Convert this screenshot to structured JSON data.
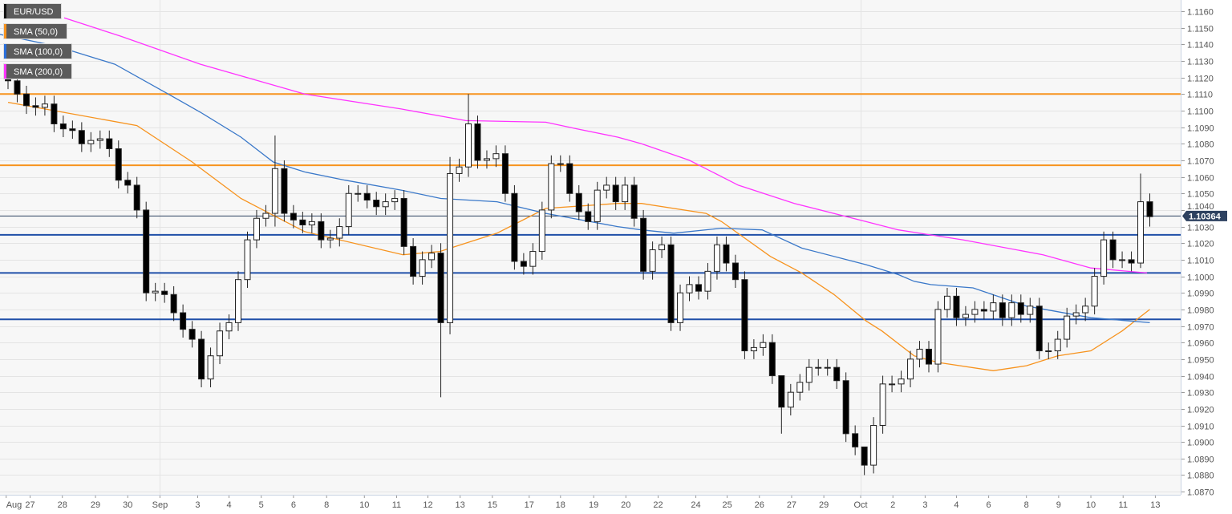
{
  "legend": [
    {
      "label": "EUR/USD",
      "color": "#111111"
    },
    {
      "label": "SMA (50,0)",
      "color": "#f7931e"
    },
    {
      "label": "SMA (100,0)",
      "color": "#2a6fdb"
    },
    {
      "label": "SMA (200,0)",
      "color": "#ff33ff"
    }
  ],
  "chart_data": {
    "type": "candlestick",
    "title": "EUR/USD",
    "ylim": [
      1.087,
      1.116
    ],
    "y_ticks": [
      "1.1160",
      "1.1150",
      "1.1140",
      "1.1130",
      "1.1120",
      "1.1110",
      "1.1100",
      "1.1090",
      "1.1080",
      "1.1070",
      "1.1060",
      "1.1050",
      "1.1040",
      "1.1030",
      "1.1020",
      "1.1010",
      "1.1000",
      "1.0990",
      "1.0980",
      "1.0970",
      "1.0960",
      "1.0950",
      "1.0940",
      "1.0930",
      "1.0920",
      "1.0910",
      "1.0900",
      "1.0890",
      "1.0880",
      "1.0870"
    ],
    "x_ticks": [
      {
        "label": "Aug",
        "i": -0.2
      },
      {
        "label": "27",
        "i": 2.4
      },
      {
        "label": "28",
        "i": 5.9
      },
      {
        "label": "29",
        "i": 9.5
      },
      {
        "label": "30",
        "i": 13
      },
      {
        "label": "Sep",
        "i": 16.5
      },
      {
        "label": "3",
        "i": 20.6
      },
      {
        "label": "4",
        "i": 24
      },
      {
        "label": "5",
        "i": 27.5
      },
      {
        "label": "6",
        "i": 31
      },
      {
        "label": "8",
        "i": 34.6
      },
      {
        "label": "10",
        "i": 38.7
      },
      {
        "label": "11",
        "i": 42.2
      },
      {
        "label": "12",
        "i": 45.6
      },
      {
        "label": "13",
        "i": 49.1
      },
      {
        "label": "15",
        "i": 52.6
      },
      {
        "label": "17",
        "i": 56.6
      },
      {
        "label": "18",
        "i": 60
      },
      {
        "label": "19",
        "i": 63.6
      },
      {
        "label": "20",
        "i": 67.1
      },
      {
        "label": "22",
        "i": 70.6
      },
      {
        "label": "24",
        "i": 74.7
      },
      {
        "label": "25",
        "i": 78.1
      },
      {
        "label": "26",
        "i": 81.6
      },
      {
        "label": "27",
        "i": 85.1
      },
      {
        "label": "29",
        "i": 88.6
      },
      {
        "label": "Oct",
        "i": 92.6
      },
      {
        "label": "2",
        "i": 96.1
      },
      {
        "label": "3",
        "i": 99.6
      },
      {
        "label": "4",
        "i": 103
      },
      {
        "label": "6",
        "i": 106.5
      },
      {
        "label": "8",
        "i": 110.6
      },
      {
        "label": "9",
        "i": 114.1
      },
      {
        "label": "10",
        "i": 117.6
      },
      {
        "label": "11",
        "i": 121.1
      },
      {
        "label": "13",
        "i": 124.6
      }
    ],
    "month_separators": [
      16.5,
      92.6
    ],
    "first_open": 1.1122,
    "closes": [
      1.1118,
      1.111,
      1.1103,
      1.1102,
      1.1104,
      1.1092,
      1.1089,
      1.1088,
      1.108,
      1.1082,
      1.1083,
      1.1077,
      1.1058,
      1.1055,
      1.104,
      1.099,
      1.0991,
      1.0989,
      1.0978,
      1.0968,
      1.0962,
      1.0938,
      1.0952,
      1.0967,
      1.0972,
      1.0998,
      1.1022,
      1.1035,
      1.1038,
      1.1065,
      1.1038,
      1.1034,
      1.1031,
      1.1033,
      1.1022,
      1.1023,
      1.103,
      1.105,
      1.105,
      1.1046,
      1.1042,
      1.1045,
      1.1047,
      1.1018,
      1.1,
      1.101,
      1.1014,
      1.0972,
      1.1062,
      1.1066,
      1.1092,
      1.107,
      1.1071,
      1.1074,
      1.105,
      1.1009,
      1.1006,
      1.1015,
      1.104,
      1.1068,
      1.1068,
      1.105,
      1.1039,
      1.1033,
      1.1052,
      1.1055,
      1.1045,
      1.1055,
      1.1035,
      1.1003,
      1.1016,
      1.1019,
      1.0972,
      1.099,
      1.0995,
      1.0991,
      1.1003,
      1.1019,
      1.1008,
      1.0998,
      1.0955,
      1.0957,
      1.096,
      1.094,
      1.0921,
      1.093,
      1.0936,
      1.0945,
      1.0945,
      1.0945,
      1.0937,
      1.0905,
      1.0897,
      1.0886,
      1.091,
      1.0935,
      1.0935,
      1.0938,
      1.095,
      1.0956,
      1.0947,
      1.098,
      1.0988,
      1.0975,
      1.0977,
      1.098,
      1.0979,
      1.0984,
      1.0975,
      1.0984,
      1.0977,
      1.0982,
      1.0955,
      1.0955,
      1.0962,
      1.0976,
      1.0978,
      1.0982,
      1.1,
      1.1022,
      1.101,
      1.101,
      1.1008,
      1.1045,
      1.1036
    ],
    "extremes": [
      [
        29,
        1.1085,
        1.103
      ],
      [
        47,
        1.102,
        1.0927
      ],
      [
        48,
        1.1072,
        1.0965
      ],
      [
        50,
        1.111,
        1.106
      ],
      [
        84,
        1.094,
        1.0905
      ],
      [
        93,
        1.0895,
        1.088
      ],
      [
        123,
        1.1062,
        1.1005
      ],
      [
        124,
        1.105,
        1.103
      ]
    ],
    "series": [
      {
        "name": "SMA (50,0)",
        "color": "#f7931e",
        "points": [
          [
            0,
            1.1105
          ],
          [
            14,
            1.1091
          ],
          [
            20,
            1.1069
          ],
          [
            25.3,
            1.1047
          ],
          [
            32.2,
            1.1027
          ],
          [
            42.9,
            1.1013
          ],
          [
            46.9,
            1.1015
          ],
          [
            53.1,
            1.1026
          ],
          [
            58.4,
            1.1041
          ],
          [
            66.2,
            1.1044
          ],
          [
            68.8,
            1.1044
          ],
          [
            75.8,
            1.1038
          ],
          [
            77.5,
            1.1033
          ],
          [
            82.8,
            1.1012
          ],
          [
            86.2,
            1.1002
          ],
          [
            89.7,
            1.0989
          ],
          [
            93.2,
            1.0973
          ],
          [
            94.9,
            1.0967
          ],
          [
            98.4,
            1.0952
          ],
          [
            101,
            1.0948
          ],
          [
            107,
            1.0943
          ],
          [
            110.6,
            1.0946
          ],
          [
            114,
            1.0952
          ],
          [
            117.6,
            1.0955
          ],
          [
            121,
            1.0967
          ],
          [
            124,
            1.098
          ]
        ]
      },
      {
        "name": "SMA (100,0)",
        "color": "#3a78c9",
        "points": [
          [
            -0.9,
            1.1146
          ],
          [
            5.2,
            1.1139
          ],
          [
            11.6,
            1.1128
          ],
          [
            17.4,
            1.111
          ],
          [
            20.9,
            1.1099
          ],
          [
            25.3,
            1.1084
          ],
          [
            28.8,
            1.1069
          ],
          [
            32.2,
            1.1063
          ],
          [
            36.6,
            1.1058
          ],
          [
            42.7,
            1.1052
          ],
          [
            47,
            1.1047
          ],
          [
            53.1,
            1.1045
          ],
          [
            58.4,
            1.1038
          ],
          [
            66.2,
            1.103
          ],
          [
            68.8,
            1.1028
          ],
          [
            72.3,
            1.1026
          ],
          [
            77.5,
            1.1029
          ],
          [
            81.9,
            1.1028
          ],
          [
            86.2,
            1.1017
          ],
          [
            93.2,
            1.1007
          ],
          [
            96.7,
            1.1001
          ],
          [
            98.4,
            1.0997
          ],
          [
            100.2,
            1.0995
          ],
          [
            104.8,
            1.0993
          ],
          [
            110.6,
            1.0982
          ],
          [
            117.6,
            1.0975
          ],
          [
            124,
            1.0972
          ]
        ]
      },
      {
        "name": "SMA (200,0)",
        "color": "#ff33ff",
        "points": [
          [
            6.1,
            1.1156
          ],
          [
            12.2,
            1.1145
          ],
          [
            20.9,
            1.1128
          ],
          [
            32.2,
            1.111
          ],
          [
            42.7,
            1.1101
          ],
          [
            49.7,
            1.1094
          ],
          [
            58.4,
            1.1093
          ],
          [
            61.8,
            1.1089
          ],
          [
            66.2,
            1.1084
          ],
          [
            68.8,
            1.108
          ],
          [
            74,
            1.107
          ],
          [
            79.3,
            1.1055
          ],
          [
            85.4,
            1.1044
          ],
          [
            93.2,
            1.1033
          ],
          [
            96.7,
            1.1028
          ],
          [
            103.7,
            1.1022
          ],
          [
            112.4,
            1.1013
          ],
          [
            117.6,
            1.1005
          ],
          [
            123.7,
            1.1002
          ]
        ]
      }
    ],
    "horizontal_levels": [
      {
        "value": 1.111,
        "color": "#f7931e"
      },
      {
        "value": 1.1067,
        "color": "#f7931e"
      },
      {
        "value": 1.1025,
        "color": "#1f4fa8"
      },
      {
        "value": 1.1002,
        "color": "#1f4fa8"
      },
      {
        "value": 1.0974,
        "color": "#1f4fa8"
      }
    ],
    "last_price": {
      "value": 1.10364,
      "label": "1.10364",
      "color": "#2d4160"
    }
  }
}
